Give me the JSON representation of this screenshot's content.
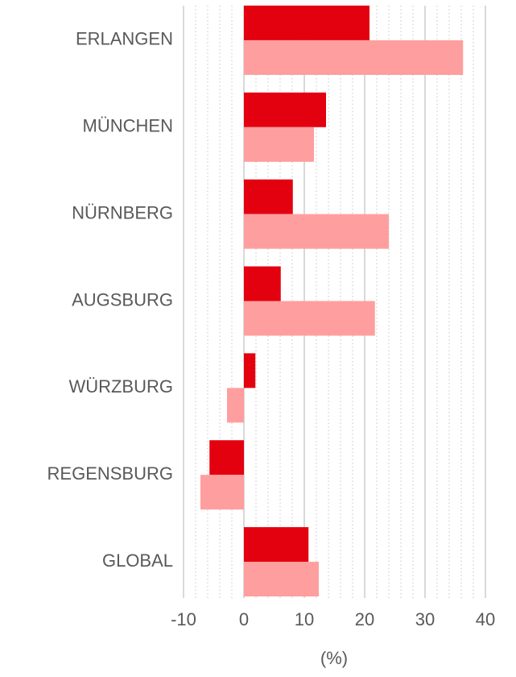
{
  "chart_data": {
    "type": "hbar",
    "categories": [
      "ERLANGEN",
      "MÜNCHEN",
      "NÜRNBERG",
      "AUGSBURG",
      "WÜRZBURG",
      "REGENSBURG",
      "GLOBAL"
    ],
    "series": [
      {
        "color": "#e3000f",
        "values": [
          20.8,
          13.6,
          8.1,
          6.1,
          1.9,
          -5.7,
          10.7
        ]
      },
      {
        "color": "#ff9e9e",
        "values": [
          36.3,
          11.6,
          24.0,
          21.7,
          -2.8,
          -7.2,
          12.4
        ]
      }
    ],
    "xlabel": "(%)",
    "xlim": [
      -10,
      40
    ],
    "xticks": [
      -10,
      0,
      10,
      20,
      30,
      40
    ],
    "grid": true,
    "minor_grid_step": 2
  }
}
